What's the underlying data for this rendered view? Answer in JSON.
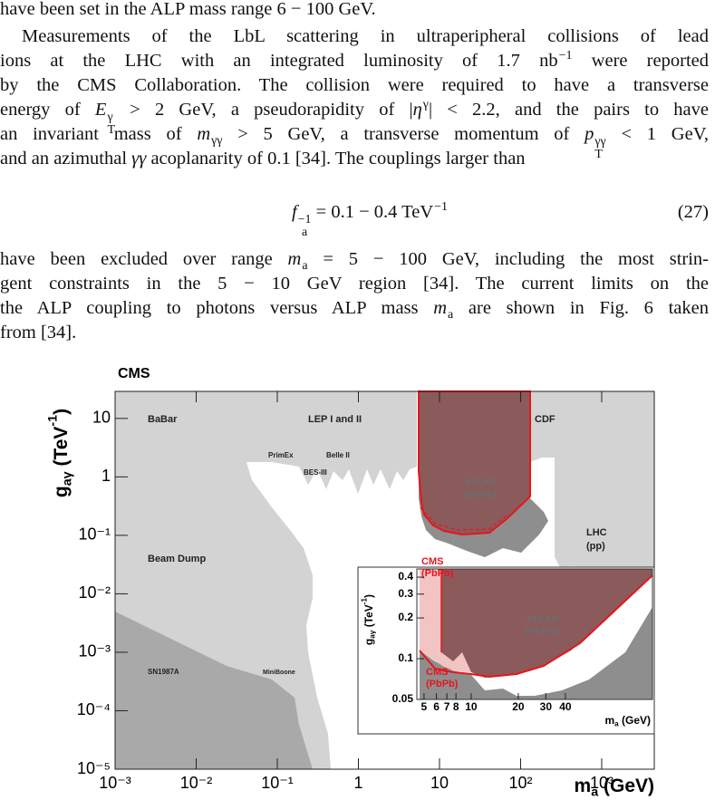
{
  "lines": [
    [
      "have been set in the ALP mass range 6 − 100 GeV."
    ],
    [
      "Measurements of the LbL scattering in ultraperipheral collisions of lead"
    ],
    [
      "ions at the LHC with an integrated luminosity of 1.7 nb",
      {
        "sup": "−1"
      },
      " were reported"
    ],
    [
      "by the CMS Collaboration. The collision were required to have a transverse"
    ],
    [
      "energy of ",
      {
        "t": "E",
        "sub": "T",
        "sup": "γ"
      },
      " > 2 GeV, a pseudorapidity of |",
      {
        "t": "η",
        "sup": "γ"
      },
      "| < 2.2, and the pairs to have"
    ],
    [
      "an invariant mass of ",
      {
        "t": "m",
        "sub": "γγ"
      },
      " > 5 GeV, a transverse momentum of ",
      {
        "t": "p",
        "sub": "T",
        "sup": "γγ"
      },
      " < 1 GeV,"
    ],
    [
      "and an azimuthal ",
      {
        "t": "γγ"
      },
      " acoplanarity of 0.1 [34]. The couplings larger than"
    ],
    [
      "have been excluded over range ",
      {
        "t": "m",
        "sub": "a"
      },
      " = 5 − 100 GeV, including the most strin-"
    ],
    [
      "gent constraints in the 5 − 10 GeV region [34]. The current limits on the"
    ],
    [
      "the ALP coupling to photons versus ALP mass ",
      {
        "t": "m",
        "sub": "a"
      },
      " are shown in Fig. 6 taken"
    ],
    [
      "from [34]."
    ]
  ],
  "equation": {
    "runs": [
      {
        "t": "f",
        "sub": "a",
        "sup": "−1"
      },
      " = 0.1 − 0.4 TeV",
      {
        "sup": "−1"
      }
    ],
    "number": "(27)"
  },
  "chart_data": {
    "type": "area",
    "title": "CMS",
    "xlabel": [
      {
        "t": "m",
        "sub": "a"
      },
      " (GeV)"
    ],
    "ylabel": [
      {
        "t": "g",
        "sub": "aγ"
      },
      " (TeV",
      {
        "sup": "-1"
      },
      ")"
    ],
    "log_x": true,
    "log_y": true,
    "xlim": [
      0.001,
      4450
    ],
    "ylim": [
      1e-05,
      29
    ],
    "xticks": [
      {
        "value": 0.001,
        "label": "10⁻³"
      },
      {
        "value": 0.01,
        "label": "10⁻²"
      },
      {
        "value": 0.1,
        "label": "10⁻¹"
      },
      1,
      10,
      {
        "value": 100,
        "label": "10²"
      },
      {
        "value": 1000,
        "label": "10³"
      }
    ],
    "yticks": [
      {
        "value": 1e-05,
        "label": "10⁻⁵"
      },
      {
        "value": 0.0001,
        "label": "10⁻⁴"
      },
      {
        "value": 0.001,
        "label": "10⁻³"
      },
      {
        "value": 0.01,
        "label": "10⁻²"
      },
      {
        "value": 0.1,
        "label": "10⁻¹"
      },
      1,
      10
    ],
    "annotations": [
      "BaBar",
      "LEP I and II",
      "CDF",
      "PrimEx",
      "Belle II",
      "BES-III",
      "ATLAS",
      "(PbPb)",
      "LHC",
      "(pp)",
      "CMS",
      "(PbPb)",
      "Beam Dump",
      "SN1987A",
      "MiniBoone"
    ],
    "inset": {
      "xlabel": [
        {
          "t": "m",
          "sub": "a"
        },
        " (GeV)"
      ],
      "ylabel": [
        {
          "t": "g",
          "sub": "aγ"
        },
        " (TeV",
        {
          "sup": "-1"
        },
        ")"
      ],
      "xlim": [
        4.5,
        144
      ],
      "ylim": [
        0.05,
        0.46
      ],
      "xticks": [
        5,
        6,
        7,
        8,
        10,
        20,
        30,
        40
      ],
      "yticks": [
        0.05,
        0.1,
        0.2,
        0.3,
        0.4
      ],
      "annotations": [
        "ATLAS",
        "(PbPb)",
        "CMS",
        "(PbPb)"
      ]
    }
  }
}
